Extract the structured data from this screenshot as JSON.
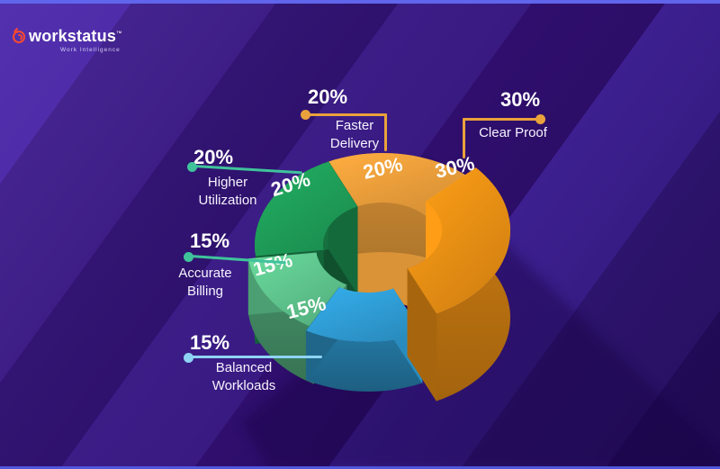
{
  "header": {
    "brand": "workstatus",
    "trademark": "™",
    "tagline": "Work Intelligence"
  },
  "icons": {
    "logo": "stopwatch-icon",
    "callout_markers": "dot-marker"
  },
  "colors": {
    "background": "#36187E",
    "border_top": "#6065EB",
    "border_bottom": "#4F57DC",
    "orange_line": "#E9A23B",
    "teal_line": "#3FC39B",
    "light_blue_line": "#8FD3F4",
    "logo_icon": "#FF4A2D",
    "text": "#FFFFFF"
  },
  "chart_data": {
    "type": "pie",
    "style": "3d-exploded-donut",
    "unit": "percent",
    "total": 100,
    "title": "",
    "labels_on_slices": true,
    "legend_position": "callout-labels",
    "slices": [
      {
        "label": "Faster Delivery",
        "value": 20,
        "display": "20%",
        "color": "#F2A33C",
        "line_color": "#E9A23B",
        "exploded": false
      },
      {
        "label": "Clear Proof",
        "value": 30,
        "display": "30%",
        "color": "#EF9114",
        "line_color": "#E9A23B",
        "exploded": true
      },
      {
        "label": "Higher Utilization",
        "value": 20,
        "display": "20%",
        "color": "#1FA05A",
        "line_color": "#3FC39B",
        "exploded": false
      },
      {
        "label": "Accurate Billing",
        "value": 15,
        "display": "15%",
        "color": "#5FC78F",
        "line_color": "#3FC39B",
        "exploded": false
      },
      {
        "label": "Balanced Workloads",
        "value": 15,
        "display": "15%",
        "color": "#309FD8",
        "line_color": "#8FD3F4",
        "exploded": false
      }
    ]
  }
}
